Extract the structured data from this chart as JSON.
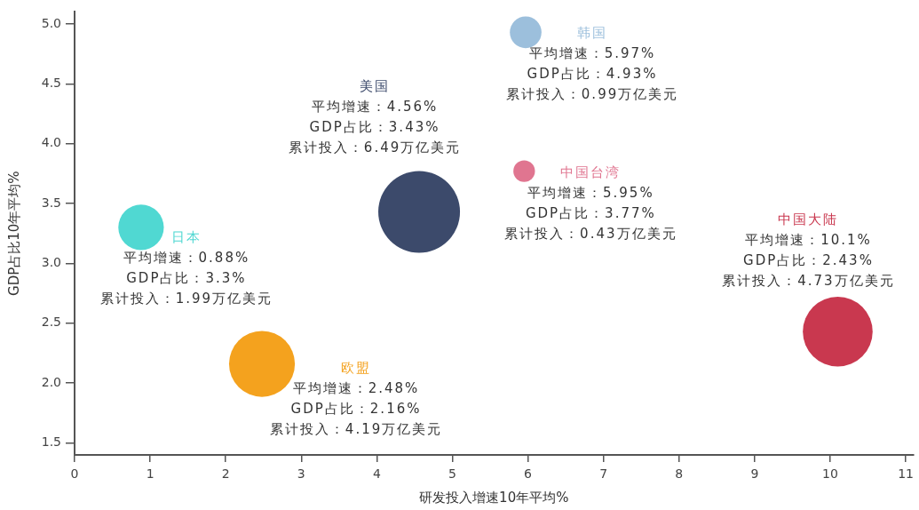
{
  "chart_data": {
    "type": "bubble",
    "xlabel": "研发投入增速10年平均%",
    "ylabel": "GDP占比10年平均%",
    "xlim": [
      0,
      11.1
    ],
    "xticks": [
      0,
      1,
      2,
      3,
      4,
      5,
      6,
      7,
      8,
      9,
      10,
      11
    ],
    "ylim": [
      1.4,
      5.1
    ],
    "yticks": [
      1.5,
      {
        "value": 2,
        "label": "2.0"
      },
      2.5,
      {
        "value": 3,
        "label": "3.0"
      },
      3.5,
      {
        "value": 4,
        "label": "4.0"
      },
      4.5,
      {
        "value": 5,
        "label": "5.0"
      }
    ],
    "series": [
      {
        "name": "日本",
        "color": "#50d8d2",
        "x": [
          0.88
        ],
        "values": [
          3.3
        ],
        "sizes": [
          0.31
        ],
        "value_labels": [
          "平均增速：0.88%\nGDP占比：3.3%\n累计投入：1.99万亿美元"
        ]
      },
      {
        "name": "美国",
        "color": "#3c4a6b",
        "x": [
          4.56
        ],
        "values": [
          3.43
        ],
        "sizes": [
          1
        ],
        "value_labels": [
          "平均增速：4.56%\nGDP占比：3.43%\n累计投入：6.49万亿美元"
        ]
      },
      {
        "name": "韩国",
        "color": "#9cbfdc",
        "x": [
          5.97
        ],
        "values": [
          4.93
        ],
        "sizes": [
          0.15
        ],
        "value_labels": [
          "平均增速：5.97%\nGDP占比：4.93%\n累计投入：0.99万亿美元"
        ]
      },
      {
        "name": "中国台湾",
        "color": "#e07590",
        "x": [
          5.95
        ],
        "values": [
          3.77
        ],
        "sizes": [
          0.07
        ],
        "value_labels": [
          "平均增速：5.95%\nGDP占比：3.77%\n累计投入：0.43万亿美元"
        ]
      },
      {
        "name": "中国大陆",
        "color": "#c9384f",
        "x": [
          10.1
        ],
        "values": [
          2.43
        ],
        "sizes": [
          0.73
        ],
        "value_labels": [
          "平均增速：10.1%\nGDP占比：2.43%\n累计投入：4.73万亿美元"
        ]
      },
      {
        "name": "欧盟",
        "color": "#f4a21e",
        "x": [
          2.48
        ],
        "values": [
          2.16
        ],
        "sizes": [
          0.65
        ],
        "value_labels": [
          "平均增速：2.48%\nGDP占比：2.16%\n累计投入：4.19万亿美元"
        ]
      }
    ]
  }
}
